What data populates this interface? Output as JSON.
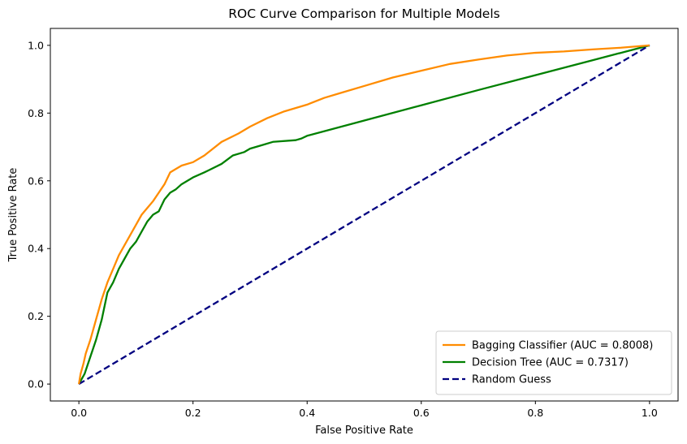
{
  "chart_data": {
    "type": "line",
    "title": "ROC Curve Comparison for Multiple Models",
    "xlabel": "False Positive Rate",
    "ylabel": "True Positive Rate",
    "xlim": [
      -0.05,
      1.05
    ],
    "ylim": [
      -0.05,
      1.05
    ],
    "xticks": [
      0.0,
      0.2,
      0.4,
      0.6,
      0.8,
      1.0
    ],
    "yticks": [
      0.0,
      0.2,
      0.4,
      0.6,
      0.8,
      1.0
    ],
    "xtick_labels": [
      "0.0",
      "0.2",
      "0.4",
      "0.6",
      "0.8",
      "1.0"
    ],
    "ytick_labels": [
      "0.0",
      "0.2",
      "0.4",
      "0.6",
      "0.8",
      "1.0"
    ],
    "grid": false,
    "legend_position": "lower-right",
    "series": [
      {
        "name": "Bagging Classifier (AUC = 0.8008)",
        "color": "#ff8c00",
        "dash": "solid",
        "x": [
          0.0,
          0.003,
          0.008,
          0.012,
          0.02,
          0.03,
          0.04,
          0.05,
          0.06,
          0.07,
          0.08,
          0.09,
          0.1,
          0.11,
          0.12,
          0.13,
          0.14,
          0.15,
          0.16,
          0.17,
          0.18,
          0.2,
          0.22,
          0.25,
          0.28,
          0.3,
          0.33,
          0.36,
          0.4,
          0.43,
          0.46,
          0.5,
          0.55,
          0.6,
          0.65,
          0.7,
          0.75,
          0.8,
          0.85,
          0.9,
          0.95,
          1.0
        ],
        "y": [
          0.0,
          0.03,
          0.06,
          0.09,
          0.13,
          0.19,
          0.25,
          0.3,
          0.34,
          0.38,
          0.41,
          0.44,
          0.47,
          0.5,
          0.52,
          0.54,
          0.565,
          0.59,
          0.625,
          0.635,
          0.645,
          0.655,
          0.675,
          0.715,
          0.74,
          0.76,
          0.785,
          0.805,
          0.825,
          0.845,
          0.86,
          0.88,
          0.905,
          0.925,
          0.945,
          0.958,
          0.97,
          0.978,
          0.982,
          0.988,
          0.993,
          1.0
        ]
      },
      {
        "name": "Decision Tree (AUC = 0.7317)",
        "color": "#008000",
        "dash": "solid",
        "x": [
          0.0,
          0.01,
          0.02,
          0.03,
          0.04,
          0.05,
          0.06,
          0.07,
          0.08,
          0.09,
          0.1,
          0.11,
          0.12,
          0.13,
          0.14,
          0.15,
          0.16,
          0.17,
          0.18,
          0.2,
          0.22,
          0.25,
          0.27,
          0.29,
          0.3,
          0.32,
          0.34,
          0.38,
          0.39,
          0.4,
          0.5,
          0.6,
          0.7,
          0.8,
          0.9,
          1.0
        ],
        "y": [
          0.0,
          0.03,
          0.08,
          0.13,
          0.19,
          0.27,
          0.3,
          0.34,
          0.37,
          0.4,
          0.42,
          0.45,
          0.48,
          0.5,
          0.51,
          0.545,
          0.565,
          0.575,
          0.59,
          0.61,
          0.625,
          0.65,
          0.675,
          0.685,
          0.695,
          0.705,
          0.715,
          0.72,
          0.725,
          0.733,
          0.778,
          0.823,
          0.868,
          0.912,
          0.956,
          1.0
        ]
      },
      {
        "name": "Random Guess",
        "color": "#000080",
        "dash": "dashed",
        "x": [
          0.0,
          1.0
        ],
        "y": [
          0.0,
          1.0
        ]
      }
    ]
  }
}
